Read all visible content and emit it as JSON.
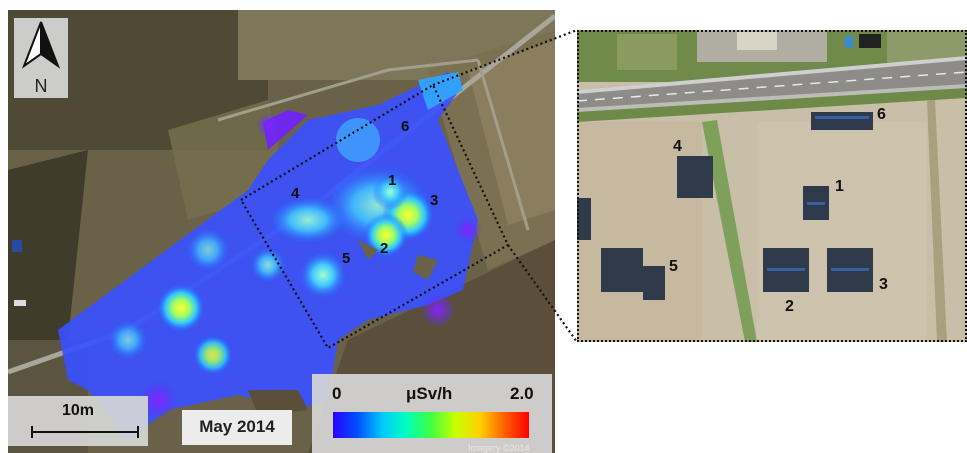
{
  "north_arrow": {
    "label": "N"
  },
  "scale_bar": {
    "label": "10m"
  },
  "date_label": "May 2014",
  "legend": {
    "min_label": "0",
    "unit_label": "μSv/h",
    "max_label": "2.0",
    "colors": [
      "#2a00ff",
      "#0050ff",
      "#00c8ff",
      "#00ffc0",
      "#40ff40",
      "#c8ff00",
      "#ffd000",
      "#ff6000",
      "#ff0000"
    ]
  },
  "imagery_credit": "Imagery ©2014",
  "site_labels_left": [
    "1",
    "2",
    "3",
    "4",
    "5",
    "6"
  ],
  "site_labels_right": [
    "1",
    "2",
    "3",
    "4",
    "5",
    "6"
  ]
}
